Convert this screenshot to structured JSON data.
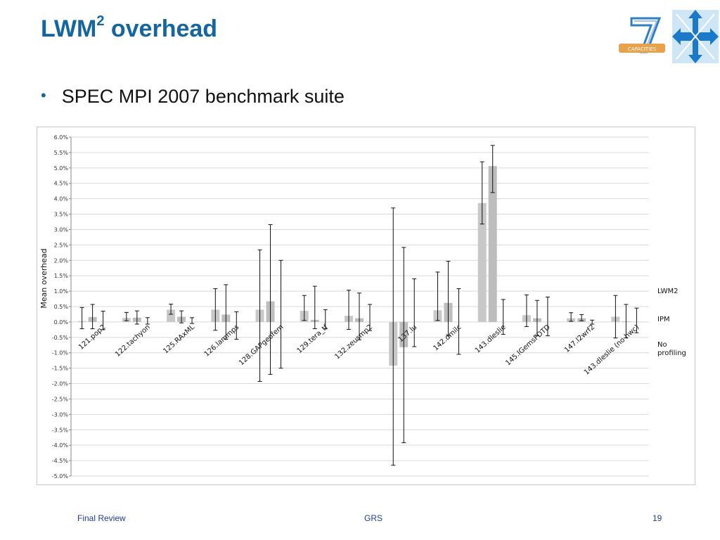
{
  "slide": {
    "title_main": "LWM",
    "title_sup": "2",
    "title_rest": " overhead",
    "bullet": "SPEC MPI 2007 benchmark suite",
    "footer_left": "Final Review",
    "footer_center": "GRS",
    "footer_right": "19"
  },
  "logos": {
    "fp7_text": "CAPACITIES",
    "colors": {
      "fp7_blue": "#2f7fc4",
      "fp7_orange": "#e8a24a",
      "cross_blue": "#1b79c9",
      "cross_light": "#cfe6f6"
    }
  },
  "chart_data": {
    "type": "bar",
    "ylabel": "Mean overhead",
    "ylim": [
      -5.0,
      6.0
    ],
    "ytick_step": 0.5,
    "y_format": "percent",
    "grid": true,
    "legend_position": "right",
    "categories": [
      "121.pop2",
      "122.tachyon",
      "125.RAxML",
      "126.lammps",
      "128.GAPgeofem",
      "129.tera_tf",
      "132.zeusmp2",
      "137.lu",
      "142.dmilc",
      "143.dleslie",
      "145.lGemsFDTD",
      "147.l2wrf2",
      "143.dleslie (no hwc)"
    ],
    "series": [
      {
        "name": "LWM2",
        "color": "#c8c8c8",
        "values": [
          0.03,
          0.13,
          0.4,
          0.4,
          0.4,
          0.36,
          0.2,
          -1.42,
          0.38,
          3.86,
          0.22,
          0.12,
          0.17
        ],
        "err_low": [
          -0.22,
          0.04,
          0.25,
          -0.27,
          -1.93,
          0.05,
          -0.24,
          -4.65,
          0.05,
          3.18,
          -0.15,
          0.02,
          -0.52
        ],
        "err_high": [
          0.47,
          0.31,
          0.58,
          1.08,
          2.34,
          0.86,
          1.03,
          3.7,
          1.62,
          5.2,
          0.88,
          0.3,
          0.86
        ]
      },
      {
        "name": "IPM",
        "color": "#bdbdbd",
        "values": [
          0.16,
          0.14,
          0.17,
          0.24,
          0.67,
          0.07,
          0.12,
          -0.82,
          0.62,
          5.06,
          0.12,
          0.12,
          0.02
        ],
        "err_low": [
          -0.22,
          -0.07,
          -0.03,
          -0.56,
          -1.7,
          -0.22,
          -0.58,
          -3.92,
          -0.45,
          4.2,
          -0.45,
          0.04,
          -0.52
        ],
        "err_high": [
          0.57,
          0.36,
          0.36,
          1.21,
          3.16,
          1.16,
          0.94,
          2.42,
          1.97,
          5.73,
          0.7,
          0.24,
          0.57
        ]
      },
      {
        "name": "No profiling",
        "color": "#d9d9d9",
        "values": [
          0.0,
          0.0,
          0.0,
          0.0,
          0.0,
          0.0,
          0.0,
          0.0,
          0.0,
          0.0,
          0.0,
          0.0,
          0.0
        ],
        "err_low": [
          -0.25,
          -0.07,
          -0.05,
          -0.56,
          -1.5,
          -0.22,
          -0.28,
          -0.8,
          -1.05,
          -0.4,
          -0.45,
          -0.07,
          -0.35
        ],
        "err_high": [
          0.35,
          0.14,
          0.14,
          0.33,
          2.0,
          0.4,
          0.57,
          1.4,
          1.08,
          0.73,
          0.81,
          0.06,
          0.45
        ]
      }
    ]
  }
}
